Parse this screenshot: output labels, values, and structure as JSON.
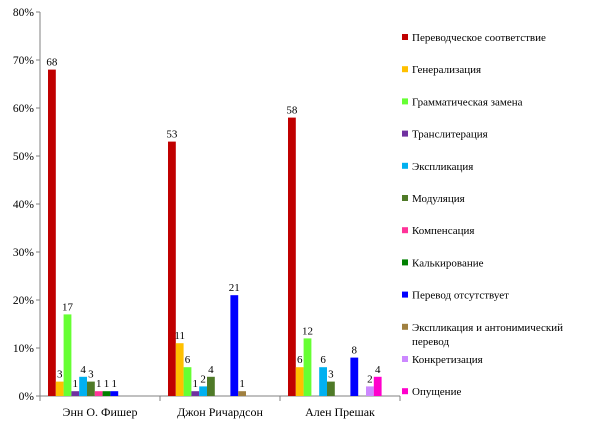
{
  "chart_data": {
    "type": "bar",
    "categories": [
      "Энн О. Фишер",
      "Джон Ричардсон",
      "Ален Прешак"
    ],
    "ylim": [
      0,
      0.8
    ],
    "yticks": [
      "0%",
      "10%",
      "20%",
      "30%",
      "40%",
      "50%",
      "60%",
      "70%",
      "80%"
    ],
    "grid": false,
    "legend_position": "right",
    "series": [
      {
        "name": "Переводческое соответствие",
        "color": "#C00000",
        "values": [
          0.68,
          0.53,
          0.58
        ],
        "labels": [
          "68",
          "53",
          "58"
        ]
      },
      {
        "name": "Генерализация",
        "color": "#FFC000",
        "values": [
          0.03,
          0.11,
          0.06
        ],
        "labels": [
          "3",
          "11",
          "6"
        ]
      },
      {
        "name": "Грамматическая замена",
        "color": "#66FF33",
        "values": [
          0.17,
          0.06,
          0.12
        ],
        "labels": [
          "17",
          "6",
          "12"
        ]
      },
      {
        "name": "Транслитерация",
        "color": "#7030A0",
        "values": [
          0.01,
          0.01,
          0
        ],
        "labels": [
          "1",
          "1",
          ""
        ]
      },
      {
        "name": "Экспликация",
        "color": "#00B0F0",
        "values": [
          0.04,
          0.02,
          0.06
        ],
        "labels": [
          "4",
          "2",
          "6"
        ]
      },
      {
        "name": "Модуляция",
        "color": "#4F7A28",
        "values": [
          0.03,
          0.04,
          0.03
        ],
        "labels": [
          "3",
          "4",
          "3"
        ]
      },
      {
        "name": "Компенсация",
        "color": "#FF3399",
        "values": [
          0.01,
          0,
          0
        ],
        "labels": [
          "1",
          "",
          ""
        ]
      },
      {
        "name": "Калькирование",
        "color": "#008000",
        "values": [
          0.01,
          0,
          0
        ],
        "labels": [
          "1",
          "",
          ""
        ]
      },
      {
        "name": "Перевод отсутствует",
        "color": "#0000FF",
        "values": [
          0.01,
          0.21,
          0.08
        ],
        "labels": [
          "1",
          "21",
          "8"
        ]
      },
      {
        "name": "Экспликация и антонимический перевод",
        "color": "#A08040",
        "values": [
          0,
          0.01,
          0
        ],
        "labels": [
          "",
          "1",
          ""
        ]
      },
      {
        "name": "Конкретизация",
        "color": "#CC88FF",
        "values": [
          0,
          0,
          0.02
        ],
        "labels": [
          "",
          "",
          "2"
        ]
      },
      {
        "name": "Опущение",
        "color": "#FF00CC",
        "values": [
          0,
          0,
          0.04
        ],
        "labels": [
          "",
          "",
          "4"
        ]
      }
    ]
  }
}
